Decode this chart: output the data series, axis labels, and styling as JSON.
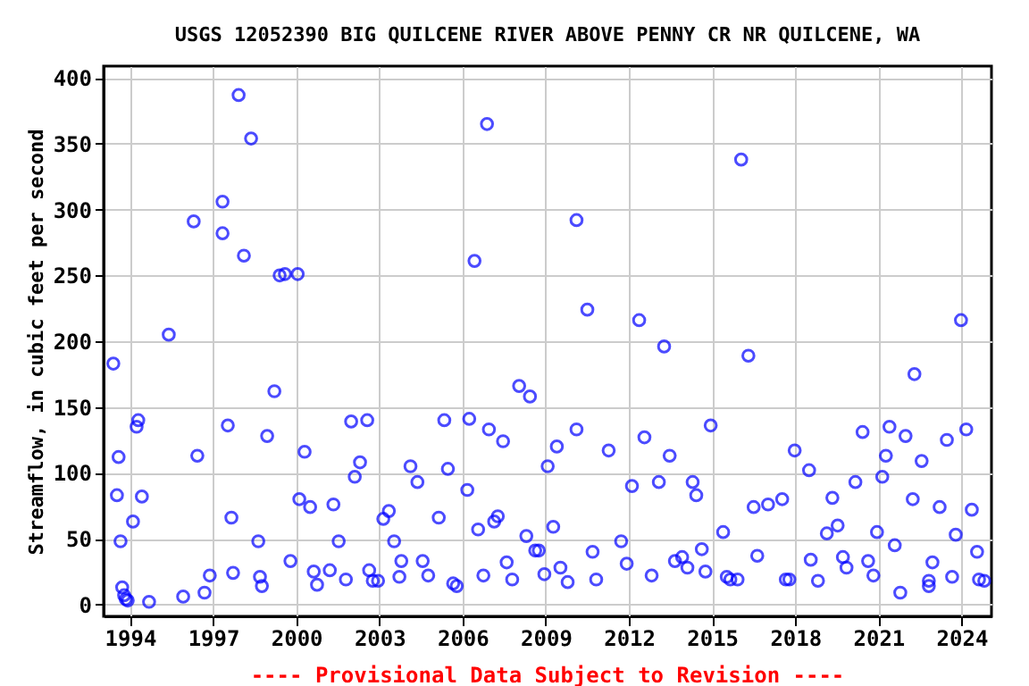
{
  "chart_data": {
    "type": "scatter",
    "title": "USGS 12052390 BIG QUILCENE RIVER ABOVE PENNY CR NR QUILCENE, WA",
    "ylabel": "Streamflow, in cubic feet per second",
    "annotations": [
      "---- Provisional Data Subject to Revision ----"
    ],
    "xlim": [
      1993.05,
      2025.08
    ],
    "xticks": [
      1994,
      1997,
      2000,
      2003,
      2006,
      2009,
      2012,
      2015,
      2018,
      2021,
      2024
    ],
    "ylim": [
      -9,
      409
    ],
    "yticks": [
      0,
      50,
      100,
      150,
      200,
      250,
      300,
      350,
      400
    ],
    "grid": true,
    "marker": "circle",
    "series": [
      {
        "color": "#0000ff",
        "x": [
          1993.4,
          1993.59,
          1993.53,
          1993.66,
          1993.72,
          1993.79,
          1993.85,
          1993.92,
          1994.11,
          1994.24,
          1994.3,
          1994.43,
          1994.69,
          1995.4,
          1995.92,
          1996.3,
          1996.43,
          1996.69,
          1996.88,
          1997.34,
          1997.34,
          1997.53,
          1997.66,
          1997.72,
          1997.92,
          1998.37,
          1998.11,
          1998.63,
          1998.69,
          1998.76,
          1998.95,
          1999.21,
          1999.4,
          1999.59,
          2000.05,
          1999.79,
          2000.3,
          2000.11,
          2000.5,
          2000.63,
          2000.75,
          2001.21,
          2001.34,
          2001.53,
          2001.79,
          2001.98,
          2002.11,
          2002.3,
          2002.56,
          2002.63,
          2002.76,
          2002.95,
          2003.14,
          2003.34,
          2003.53,
          2003.72,
          2003.79,
          2004.12,
          2004.37,
          2004.56,
          2004.76,
          2005.14,
          2005.34,
          2005.47,
          2005.66,
          2005.79,
          2006.17,
          2006.24,
          2006.43,
          2006.56,
          2006.75,
          2006.88,
          2006.95,
          2007.14,
          2007.27,
          2007.46,
          2007.59,
          2007.79,
          2008.04,
          2008.3,
          2008.43,
          2008.62,
          2008.75,
          2008.95,
          2009.07,
          2009.27,
          2009.4,
          2009.53,
          2009.79,
          2010.11,
          2010.11,
          2010.5,
          2010.69,
          2010.82,
          2011.27,
          2011.72,
          2011.92,
          2012.11,
          2012.37,
          2012.56,
          2012.82,
          2013.08,
          2013.27,
          2013.47,
          2013.66,
          2013.92,
          2014.11,
          2014.3,
          2014.43,
          2014.63,
          2014.76,
          2014.95,
          2015.4,
          2015.53,
          2015.66,
          2015.92,
          2016.05,
          2016.31,
          2016.5,
          2016.63,
          2017.02,
          2017.53,
          2017.66,
          2017.79,
          2017.98,
          2018.5,
          2018.56,
          2018.82,
          2019.14,
          2019.34,
          2019.53,
          2019.72,
          2019.85,
          2020.17,
          2020.43,
          2020.63,
          2020.82,
          2020.95,
          2021.14,
          2021.27,
          2021.4,
          2021.59,
          2021.79,
          2021.98,
          2022.24,
          2022.3,
          2022.56,
          2022.82,
          2022.82,
          2022.95,
          2023.21,
          2023.47,
          2023.66,
          2023.79,
          2023.98,
          2024.17,
          2024.37,
          2024.56,
          2024.63,
          2024.82
        ],
        "values": [
          183,
          112,
          83,
          48,
          13,
          7,
          4,
          3,
          63,
          135,
          140,
          82,
          2,
          205,
          6,
          291,
          113,
          9,
          22,
          306,
          282,
          136,
          66,
          24,
          387,
          354,
          265,
          48,
          21,
          14,
          128,
          162,
          250,
          251,
          251,
          33,
          116,
          80,
          74,
          25,
          15,
          26,
          76,
          48,
          19,
          139,
          97,
          108,
          140,
          26,
          18,
          18,
          65,
          71,
          48,
          21,
          33,
          105,
          93,
          33,
          22,
          66,
          140,
          103,
          16,
          14,
          87,
          141,
          261,
          57,
          22,
          365,
          133,
          63,
          67,
          124,
          32,
          19,
          166,
          52,
          158,
          41,
          41,
          23,
          105,
          59,
          120,
          28,
          17,
          292,
          133,
          224,
          40,
          19,
          117,
          48,
          31,
          90,
          216,
          127,
          22,
          93,
          196,
          113,
          33,
          36,
          28,
          93,
          83,
          42,
          25,
          136,
          55,
          21,
          19,
          19,
          338,
          189,
          74,
          37,
          76,
          80,
          19,
          19,
          117,
          102,
          34,
          18,
          54,
          81,
          60,
          36,
          28,
          93,
          131,
          33,
          22,
          55,
          97,
          113,
          135,
          45,
          9,
          128,
          80,
          175,
          109,
          18,
          14,
          32,
          74,
          125,
          21,
          53,
          216,
          133,
          72,
          40,
          19,
          18
        ]
      }
    ]
  }
}
